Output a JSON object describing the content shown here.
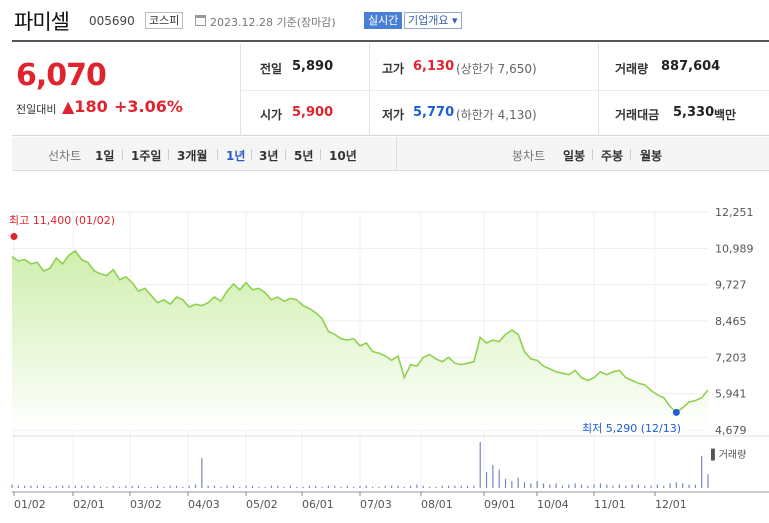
{
  "header": {
    "name": "파미셀",
    "code": "005690",
    "market_badge": "코스피",
    "date_text": "2023.12.28  기준(장마감)",
    "realtime_badge": "실시간",
    "info_badge": "기업개요 ▾"
  },
  "price": {
    "current": "6,070",
    "change_label": "전일대비",
    "change_amount": "▲180",
    "change_pct": "+3.06%"
  },
  "stats": {
    "prev_close_label": "전일",
    "prev_close": "5,890",
    "open_label": "시가",
    "open": "5,900",
    "high_label": "고가",
    "high": "6,130",
    "upper_limit_text": "(상한가 7,650)",
    "low_label": "저가",
    "low": "5,770",
    "lower_limit_text": "(하한가 4,130)",
    "volume_label": "거래량",
    "volume": "887,604",
    "amount_label": "거래대금",
    "amount": "5,330",
    "amount_unit": "백만"
  },
  "period_bar": {
    "line_label": "선차트",
    "line_options": [
      "1일",
      "1주일",
      "3개월",
      "1년",
      "3년",
      "5년",
      "10년"
    ],
    "selected": "1년",
    "candle_label": "봉차트",
    "candle_options": [
      "일봉",
      "주봉",
      "월봉"
    ]
  },
  "colors": {
    "up": "#e0242e",
    "down": "#1e5fd1",
    "line": "#8fd14f",
    "fill_top": "#d4f0b4",
    "accent": "#2a5bc5"
  },
  "chart_data": {
    "type": "area",
    "title": "",
    "ylim": [
      4679,
      12251
    ],
    "y_ticks": [
      "12,251",
      "10,989",
      "9,727",
      "8,465",
      "7,203",
      "5,941",
      "4,679"
    ],
    "x_ticks": [
      "01/02",
      "02/01",
      "03/02",
      "04/03",
      "05/02",
      "06/01",
      "07/03",
      "08/01",
      "09/01",
      "10/04",
      "11/01",
      "12/01"
    ],
    "high_annotation": "최고 11,400 (01/02)",
    "low_annotation": "최저 5,290 (12/13)",
    "volume_label": "▌거래량",
    "series": [
      {
        "name": "",
        "values": [
          10700,
          10550,
          10600,
          10450,
          10500,
          10200,
          10300,
          10650,
          10450,
          10750,
          10900,
          10600,
          10500,
          10200,
          10100,
          10050,
          10250,
          9900,
          10000,
          9800,
          9500,
          9600,
          9350,
          9100,
          9200,
          9050,
          9300,
          9200,
          8950,
          9050,
          9000,
          9100,
          9300,
          9150,
          9500,
          9750,
          9550,
          9800,
          9550,
          9600,
          9450,
          9200,
          9300,
          9150,
          9250,
          9200,
          9000,
          8900,
          8750,
          8550,
          8100,
          8000,
          7850,
          7800,
          7850,
          7600,
          7700,
          7400,
          7350,
          7250,
          7100,
          7250,
          6500,
          6950,
          6900,
          7200,
          7300,
          7150,
          7050,
          7200,
          7000,
          6950,
          7000,
          7050,
          7900,
          7700,
          7800,
          7750,
          8000,
          8150,
          8000,
          7400,
          7150,
          7100,
          6900,
          6800,
          6700,
          6650,
          6600,
          6750,
          6500,
          6400,
          6500,
          6700,
          6600,
          6700,
          6750,
          6500,
          6400,
          6300,
          6250,
          6050,
          5900,
          5800,
          5500,
          5290,
          5450,
          5650,
          5700,
          5800,
          6070
        ]
      }
    ],
    "volume_values": [
      3,
      2,
      2,
      2,
      2,
      2,
      1,
      2,
      2,
      2,
      2,
      2,
      2,
      2,
      1,
      1,
      2,
      1,
      2,
      2,
      2,
      1,
      1,
      2,
      1,
      2,
      2,
      1,
      2,
      3,
      26,
      2,
      2,
      1,
      2,
      2,
      1,
      2,
      2,
      1,
      1,
      2,
      2,
      1,
      2,
      1,
      1,
      2,
      2,
      1,
      2,
      2,
      1,
      2,
      1,
      2,
      2,
      1,
      1,
      2,
      2,
      2,
      1,
      2,
      3,
      2,
      1,
      1,
      2,
      2,
      2,
      2,
      2,
      2,
      40,
      14,
      20,
      16,
      8,
      6,
      9,
      5,
      4,
      6,
      4,
      3,
      4,
      2,
      3,
      4,
      3,
      2,
      3,
      4,
      3,
      2,
      3,
      2,
      3,
      3,
      2,
      2,
      3,
      2,
      4,
      5,
      4,
      3,
      3,
      28,
      12
    ]
  }
}
